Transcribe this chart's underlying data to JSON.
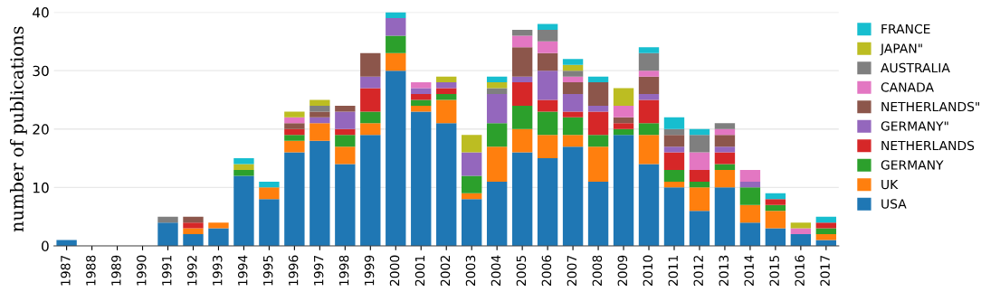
{
  "chart_data": {
    "type": "bar",
    "stacked": true,
    "ylabel": "number of publications",
    "categories": [
      "1987",
      "1988",
      "1989",
      "1990",
      "1991",
      "1992",
      "1993",
      "1994",
      "1995",
      "1996",
      "1997",
      "1998",
      "1999",
      "2000",
      "2001",
      "2002",
      "2003",
      "2004",
      "2005",
      "2006",
      "2007",
      "2008",
      "2009",
      "2010",
      "2011",
      "2012",
      "2013",
      "2014",
      "2015",
      "2016",
      "2017"
    ],
    "series": [
      {
        "name": "USA",
        "color": "#1f77b4",
        "values": [
          1,
          0,
          0,
          0,
          4,
          2,
          3,
          12,
          8,
          16,
          18,
          14,
          19,
          30,
          23,
          21,
          8,
          11,
          16,
          15,
          17,
          11,
          19,
          14,
          10,
          6,
          10,
          4,
          3,
          2,
          1
        ]
      },
      {
        "name": "UK",
        "color": "#ff7f0e",
        "values": [
          0,
          0,
          0,
          0,
          0,
          1,
          1,
          0,
          2,
          2,
          3,
          3,
          2,
          3,
          1,
          4,
          1,
          6,
          4,
          4,
          2,
          6,
          0,
          5,
          1,
          4,
          3,
          3,
          3,
          0,
          1
        ]
      },
      {
        "name": "GERMANY",
        "color": "#2ca02c",
        "values": [
          0,
          0,
          0,
          0,
          0,
          0,
          0,
          1,
          0,
          1,
          0,
          2,
          2,
          3,
          1,
          1,
          3,
          4,
          4,
          4,
          3,
          2,
          1,
          2,
          2,
          1,
          1,
          3,
          1,
          0,
          1
        ]
      },
      {
        "name": "NETHERLANDS",
        "color": "#d62728",
        "values": [
          0,
          0,
          0,
          0,
          0,
          1,
          0,
          0,
          0,
          1,
          0,
          1,
          4,
          0,
          1,
          1,
          0,
          0,
          4,
          2,
          1,
          4,
          1,
          4,
          3,
          2,
          2,
          0,
          1,
          0,
          1
        ]
      },
      {
        "name": "GERMANY\"",
        "color": "#9467bd",
        "values": [
          0,
          0,
          0,
          0,
          0,
          0,
          0,
          0,
          0,
          0,
          1,
          3,
          2,
          3,
          1,
          1,
          4,
          5,
          1,
          5,
          3,
          1,
          0,
          1,
          1,
          0,
          1,
          1,
          0,
          0,
          0
        ]
      },
      {
        "name": "NETHERLANDS\"",
        "color": "#8c564b",
        "values": [
          0,
          0,
          0,
          0,
          0,
          1,
          0,
          0,
          0,
          1,
          1,
          1,
          4,
          0,
          0,
          0,
          0,
          0,
          5,
          3,
          2,
          4,
          1,
          3,
          2,
          0,
          2,
          0,
          0,
          0,
          0
        ]
      },
      {
        "name": "CANADA",
        "color": "#e377c2",
        "values": [
          0,
          0,
          0,
          0,
          0,
          0,
          0,
          0,
          0,
          1,
          0,
          0,
          0,
          0,
          1,
          0,
          0,
          0,
          2,
          2,
          1,
          0,
          2,
          1,
          0,
          3,
          1,
          2,
          0,
          1,
          0
        ]
      },
      {
        "name": "AUSTRALIA",
        "color": "#7f7f7f",
        "values": [
          0,
          0,
          0,
          0,
          1,
          0,
          0,
          0,
          0,
          0,
          1,
          0,
          0,
          0,
          0,
          0,
          0,
          1,
          1,
          2,
          1,
          0,
          0,
          3,
          1,
          3,
          1,
          0,
          0,
          0,
          0
        ]
      },
      {
        "name": "JAPAN\"",
        "color": "#bcbd22",
        "values": [
          0,
          0,
          0,
          0,
          0,
          0,
          0,
          1,
          0,
          1,
          1,
          0,
          0,
          0,
          0,
          1,
          3,
          1,
          0,
          0,
          1,
          0,
          3,
          0,
          0,
          0,
          0,
          0,
          0,
          1,
          0
        ]
      },
      {
        "name": "FRANCE",
        "color": "#17becf",
        "values": [
          0,
          0,
          0,
          0,
          0,
          0,
          0,
          1,
          1,
          0,
          0,
          0,
          0,
          1,
          0,
          0,
          0,
          1,
          0,
          1,
          1,
          1,
          0,
          1,
          2,
          1,
          0,
          0,
          1,
          0,
          1
        ]
      }
    ],
    "ylim": [
      0,
      40
    ],
    "yticks": [
      0,
      10,
      20,
      30,
      40
    ],
    "grid": "y",
    "legend": "right"
  }
}
